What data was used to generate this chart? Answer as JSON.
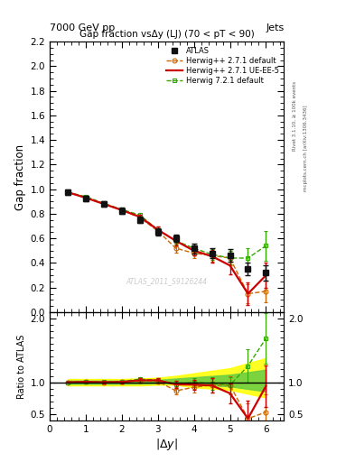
{
  "title_main": "Gap fraction vsΔy (LJ) (70 < pT < 90)",
  "top_left_label": "7000 GeV pp",
  "top_right_label": "Jets",
  "right_label_top": "Rivet 3.1.10, ≥ 100k events",
  "right_label_bottom": "mcplots.cern.ch [arXiv:1306.3436]",
  "watermark": "ATLAS_2011_S9126244",
  "atlas_x": [
    0.5,
    1.0,
    1.5,
    2.0,
    2.5,
    3.0,
    3.5,
    4.0,
    4.5,
    5.0,
    5.5,
    6.0
  ],
  "atlas_y": [
    0.975,
    0.925,
    0.88,
    0.825,
    0.75,
    0.65,
    0.6,
    0.52,
    0.48,
    0.46,
    0.35,
    0.32
  ],
  "atlas_yerr": [
    0.02,
    0.02,
    0.02,
    0.025,
    0.025,
    0.03,
    0.03,
    0.04,
    0.04,
    0.05,
    0.05,
    0.06
  ],
  "hw271def_x": [
    0.5,
    1.0,
    1.5,
    2.0,
    2.5,
    3.0,
    3.5,
    4.0,
    4.5,
    5.0,
    5.5,
    6.0
  ],
  "hw271def_y": [
    0.975,
    0.93,
    0.88,
    0.83,
    0.77,
    0.66,
    0.52,
    0.48,
    0.46,
    0.44,
    0.15,
    0.17
  ],
  "hw271def_yerr": [
    0.01,
    0.01,
    0.015,
    0.015,
    0.02,
    0.025,
    0.035,
    0.04,
    0.05,
    0.06,
    0.08,
    0.09
  ],
  "hw271def_color": "#cc6600",
  "hw271uee5_x": [
    0.5,
    1.0,
    1.5,
    2.0,
    2.5,
    3.0,
    3.5,
    4.0,
    4.5,
    5.0,
    5.5,
    6.0
  ],
  "hw271uee5_y": [
    0.975,
    0.93,
    0.88,
    0.83,
    0.775,
    0.67,
    0.58,
    0.5,
    0.455,
    0.38,
    0.15,
    0.3
  ],
  "hw271uee5_yerr": [
    0.01,
    0.01,
    0.015,
    0.015,
    0.02,
    0.025,
    0.035,
    0.04,
    0.05,
    0.07,
    0.09,
    0.1
  ],
  "hw271uee5_color": "#cc0000",
  "hw721def_x": [
    0.5,
    1.0,
    1.5,
    2.0,
    2.5,
    3.0,
    3.5,
    4.0,
    4.5,
    5.0,
    5.5,
    6.0
  ],
  "hw721def_y": [
    0.975,
    0.94,
    0.885,
    0.835,
    0.79,
    0.67,
    0.58,
    0.52,
    0.47,
    0.44,
    0.44,
    0.54
  ],
  "hw721def_yerr": [
    0.01,
    0.01,
    0.015,
    0.015,
    0.02,
    0.025,
    0.03,
    0.035,
    0.045,
    0.055,
    0.08,
    0.12
  ],
  "hw721def_color": "#33aa00",
  "ratio_hw271def_y": [
    1.0,
    1.005,
    1.0,
    1.005,
    1.025,
    1.015,
    0.865,
    0.92,
    0.955,
    0.955,
    0.43,
    0.53
  ],
  "ratio_hw271def_yerr": [
    0.01,
    0.015,
    0.02,
    0.02,
    0.025,
    0.04,
    0.06,
    0.08,
    0.11,
    0.14,
    0.24,
    0.28
  ],
  "ratio_hw271uee5_y": [
    1.0,
    1.005,
    1.0,
    1.005,
    1.03,
    1.03,
    0.965,
    0.962,
    0.948,
    0.826,
    0.43,
    0.94
  ],
  "ratio_hw271uee5_yerr": [
    0.01,
    0.015,
    0.02,
    0.02,
    0.03,
    0.04,
    0.06,
    0.08,
    0.115,
    0.16,
    0.28,
    0.33
  ],
  "ratio_hw721def_y": [
    1.0,
    1.015,
    1.005,
    1.01,
    1.05,
    1.03,
    0.965,
    1.0,
    0.98,
    0.955,
    1.255,
    1.69
  ],
  "ratio_hw721def_yerr": [
    0.01,
    0.015,
    0.02,
    0.02,
    0.028,
    0.04,
    0.055,
    0.07,
    0.1,
    0.13,
    0.26,
    0.4
  ],
  "band_yellow_low": [
    0.95,
    0.95,
    0.95,
    0.95,
    0.95,
    0.96,
    0.96,
    0.92,
    0.9,
    0.88,
    0.82,
    0.76
  ],
  "band_yellow_high": [
    1.05,
    1.05,
    1.05,
    1.05,
    1.06,
    1.07,
    1.1,
    1.14,
    1.18,
    1.22,
    1.3,
    1.38
  ],
  "band_green_low": [
    0.975,
    0.975,
    0.975,
    0.975,
    0.978,
    0.982,
    0.985,
    0.965,
    0.95,
    0.935,
    0.895,
    0.855
  ],
  "band_green_high": [
    1.025,
    1.025,
    1.025,
    1.025,
    1.03,
    1.038,
    1.058,
    1.078,
    1.098,
    1.118,
    1.158,
    1.198
  ],
  "xlim": [
    0,
    6.5
  ],
  "ylim_main": [
    0.0,
    2.2
  ],
  "ylim_ratio": [
    0.4,
    2.1
  ],
  "yticks_main": [
    0.0,
    0.2,
    0.4,
    0.6,
    0.8,
    1.0,
    1.2,
    1.4,
    1.6,
    1.8,
    2.0,
    2.2
  ],
  "yticks_ratio": [
    0.5,
    1.0,
    2.0
  ],
  "xticks": [
    0,
    1,
    2,
    3,
    4,
    5,
    6
  ],
  "atlas_color": "#111111",
  "hw271def_color2": "#cc6600",
  "hw271uee5_color2": "#cc0000",
  "hw721def_color2": "#33aa00",
  "legend_labels": [
    "ATLAS",
    "Herwig++ 2.7.1 default",
    "Herwig++ 2.7.1 UE-EE-5",
    "Herwig 7.2.1 default"
  ]
}
